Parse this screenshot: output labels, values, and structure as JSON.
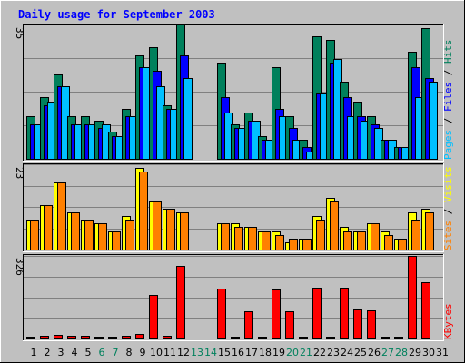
{
  "title": "Daily usage for September 2003",
  "colors": {
    "bg": "#c0c0c0",
    "plot": "#c0c0c0",
    "grid": "#808080",
    "title": "#0000ff",
    "hits": "#00805c",
    "files": "#0000ff",
    "pages": "#00c0ff",
    "visits": "#ffff00",
    "sites": "#ff8000",
    "kbytes": "#ff0000",
    "weekday": "#000000",
    "weekend": "#00805c",
    "outline": "#000000"
  },
  "chart_data": [
    {
      "type": "bar",
      "name": "hits-files-pages",
      "ymax_label": "35",
      "ylim": [
        0,
        35
      ],
      "categories": [
        "1",
        "2",
        "3",
        "4",
        "5",
        "6",
        "7",
        "8",
        "9",
        "10",
        "11",
        "12",
        "13",
        "14",
        "15",
        "16",
        "17",
        "18",
        "19",
        "20",
        "21",
        "22",
        "23",
        "24",
        "25",
        "26",
        "27",
        "28",
        "29",
        "30",
        "31"
      ],
      "labels": [
        "Pages",
        "Files",
        "Hits"
      ],
      "series": [
        {
          "name": "Hits",
          "values": [
            11,
            16,
            22,
            11,
            11,
            10,
            7,
            13,
            27,
            29,
            14,
            35,
            0,
            0,
            25,
            9,
            12,
            6,
            24,
            11,
            5,
            32,
            31,
            20,
            15,
            11,
            5,
            3,
            28,
            34,
            0
          ]
        },
        {
          "name": "Files",
          "values": [
            9,
            14,
            19,
            9,
            9,
            8,
            6,
            11,
            24,
            23,
            13,
            27,
            0,
            0,
            16,
            8,
            10,
            5,
            13,
            8,
            3,
            17,
            25,
            16,
            11,
            9,
            5,
            3,
            24,
            21,
            0
          ]
        },
        {
          "name": "Pages",
          "values": [
            9,
            15,
            19,
            9,
            9,
            9,
            6,
            11,
            24,
            19,
            13,
            21,
            0,
            0,
            12,
            8,
            10,
            5,
            11,
            5,
            2,
            17,
            26,
            11,
            10,
            8,
            5,
            3,
            16,
            20,
            0
          ]
        }
      ]
    },
    {
      "type": "bar",
      "name": "visits-sites",
      "ymax_label": "23",
      "ylim": [
        0,
        23
      ],
      "categories": [
        "1",
        "2",
        "3",
        "4",
        "5",
        "6",
        "7",
        "8",
        "9",
        "10",
        "11",
        "12",
        "13",
        "14",
        "15",
        "16",
        "17",
        "18",
        "19",
        "20",
        "21",
        "22",
        "23",
        "24",
        "25",
        "26",
        "27",
        "28",
        "29",
        "30",
        "31"
      ],
      "labels": [
        "Sites",
        "Visits"
      ],
      "series": [
        {
          "name": "Visits",
          "values": [
            8,
            12,
            18,
            10,
            8,
            7,
            5,
            9,
            22,
            13,
            11,
            10,
            0,
            0,
            7,
            7,
            6,
            5,
            5,
            2,
            3,
            9,
            14,
            6,
            5,
            7,
            5,
            3,
            10,
            11,
            0
          ]
        },
        {
          "name": "Sites",
          "values": [
            8,
            12,
            18,
            10,
            8,
            7,
            5,
            8,
            21,
            13,
            11,
            10,
            0,
            0,
            7,
            6,
            6,
            5,
            4,
            3,
            3,
            8,
            13,
            5,
            5,
            7,
            4,
            3,
            8,
            10,
            0
          ]
        }
      ]
    },
    {
      "type": "bar",
      "name": "kbytes",
      "ymax_label": "326",
      "ylim": [
        0,
        326
      ],
      "categories": [
        "1",
        "2",
        "3",
        "4",
        "5",
        "6",
        "7",
        "8",
        "9",
        "10",
        "11",
        "12",
        "13",
        "14",
        "15",
        "16",
        "17",
        "18",
        "19",
        "20",
        "21",
        "22",
        "23",
        "24",
        "25",
        "26",
        "27",
        "28",
        "29",
        "30",
        "31"
      ],
      "labels": [
        "KBytes"
      ],
      "series": [
        {
          "name": "KBytes",
          "values": [
            8,
            12,
            14,
            10,
            10,
            8,
            8,
            10,
            18,
            172,
            12,
            285,
            0,
            0,
            196,
            8,
            108,
            8,
            194,
            108,
            6,
            200,
            8,
            202,
            114,
            110,
            6,
            6,
            326,
            222,
            0
          ]
        }
      ]
    }
  ],
  "weekend_days": [
    "6",
    "7",
    "13",
    "14",
    "20",
    "21",
    "27",
    "28"
  ]
}
